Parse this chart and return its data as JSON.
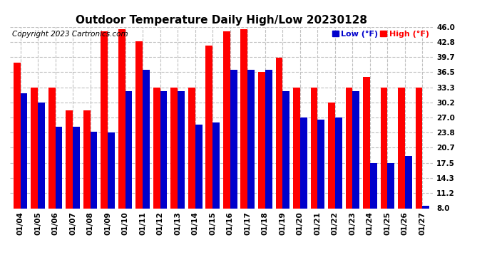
{
  "title": "Outdoor Temperature Daily High/Low 20230128",
  "copyright": "Copyright 2023 Cartronics.com",
  "legend_low": "Low",
  "legend_high": "High",
  "legend_unit": "(°F)",
  "dates": [
    "01/04",
    "01/05",
    "01/06",
    "01/07",
    "01/08",
    "01/09",
    "01/10",
    "01/11",
    "01/12",
    "01/13",
    "01/14",
    "01/15",
    "01/16",
    "01/17",
    "01/18",
    "01/19",
    "01/20",
    "01/21",
    "01/22",
    "01/23",
    "01/24",
    "01/25",
    "01/26",
    "01/27"
  ],
  "high_values": [
    38.5,
    33.3,
    33.3,
    28.5,
    28.5,
    45.0,
    45.5,
    43.0,
    33.3,
    33.3,
    33.3,
    42.0,
    45.0,
    45.5,
    36.5,
    39.5,
    33.3,
    33.3,
    30.2,
    33.3,
    35.5,
    33.3,
    33.3,
    33.3
  ],
  "low_values": [
    32.0,
    30.2,
    25.0,
    25.0,
    24.0,
    23.8,
    32.5,
    37.0,
    32.5,
    32.5,
    25.5,
    26.0,
    37.0,
    37.0,
    37.0,
    32.5,
    27.0,
    26.5,
    27.0,
    32.5,
    17.5,
    17.5,
    19.0,
    8.5
  ],
  "ylim": [
    8.0,
    46.0
  ],
  "yticks": [
    8.0,
    11.2,
    14.3,
    17.5,
    20.7,
    23.8,
    27.0,
    30.2,
    33.3,
    36.5,
    39.7,
    42.8,
    46.0
  ],
  "bar_width": 0.4,
  "high_color": "#ff0000",
  "low_color": "#0000cc",
  "bg_color": "#ffffff",
  "grid_color": "#c0c0c0",
  "title_fontsize": 11,
  "tick_fontsize": 7.5,
  "copyright_fontsize": 7.5
}
